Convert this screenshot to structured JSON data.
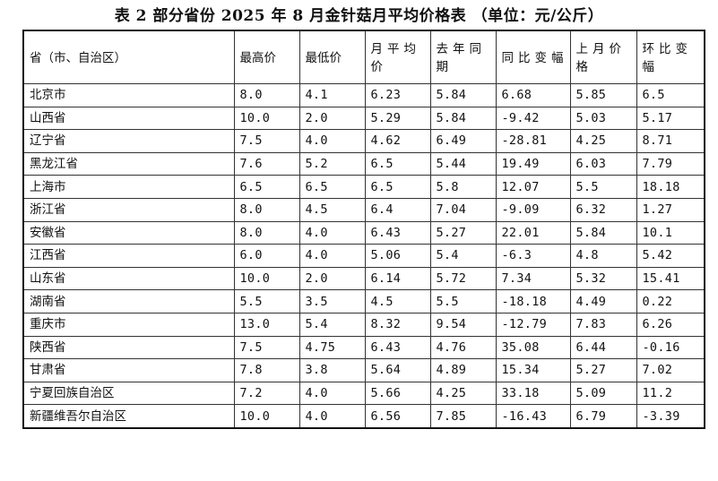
{
  "title": "表 2  部分省份 2025 年 8 月金针菇月平均价格表  （单位：元/公斤）",
  "headers": [
    "省（市、自治区）",
    "最高价",
    "最低价",
    "月平均价",
    "去年同期",
    "同比变幅",
    "上月价格",
    "环比变幅"
  ],
  "rows": [
    [
      "北京市",
      "8.0",
      "4.1",
      "6.23",
      "5.84",
      "6.68",
      "5.85",
      "6.5"
    ],
    [
      "山西省",
      "10.0",
      "2.0",
      "5.29",
      "5.84",
      "-9.42",
      "5.03",
      "5.17"
    ],
    [
      "辽宁省",
      "7.5",
      "4.0",
      "4.62",
      "6.49",
      "-28.81",
      "4.25",
      "8.71"
    ],
    [
      "黑龙江省",
      "7.6",
      "5.2",
      "6.5",
      "5.44",
      "19.49",
      "6.03",
      "7.79"
    ],
    [
      "上海市",
      "6.5",
      "6.5",
      "6.5",
      "5.8",
      "12.07",
      "5.5",
      "18.18"
    ],
    [
      "浙江省",
      "8.0",
      "4.5",
      "6.4",
      "7.04",
      "-9.09",
      "6.32",
      "1.27"
    ],
    [
      "安徽省",
      "8.0",
      "4.0",
      "6.43",
      "5.27",
      "22.01",
      "5.84",
      "10.1"
    ],
    [
      "江西省",
      "6.0",
      "4.0",
      "5.06",
      "5.4",
      "-6.3",
      "4.8",
      "5.42"
    ],
    [
      "山东省",
      "10.0",
      "2.0",
      "6.14",
      "5.72",
      "7.34",
      "5.32",
      "15.41"
    ],
    [
      "湖南省",
      "5.5",
      "3.5",
      "4.5",
      "5.5",
      "-18.18",
      "4.49",
      "0.22"
    ],
    [
      "重庆市",
      "13.0",
      "5.4",
      "8.32",
      "9.54",
      "-12.79",
      "7.83",
      "6.26"
    ],
    [
      "陕西省",
      "7.5",
      "4.75",
      "6.43",
      "4.76",
      "35.08",
      "6.44",
      "-0.16"
    ],
    [
      "甘肃省",
      "7.8",
      "3.8",
      "5.64",
      "4.89",
      "15.34",
      "5.27",
      "7.02"
    ],
    [
      "宁夏回族自治区",
      "7.2",
      "4.0",
      "5.66",
      "4.25",
      "33.18",
      "5.09",
      "11.2"
    ],
    [
      "新疆维吾尔自治区",
      "10.0",
      "4.0",
      "6.56",
      "7.85",
      "-16.43",
      "6.79",
      "-3.39"
    ]
  ]
}
